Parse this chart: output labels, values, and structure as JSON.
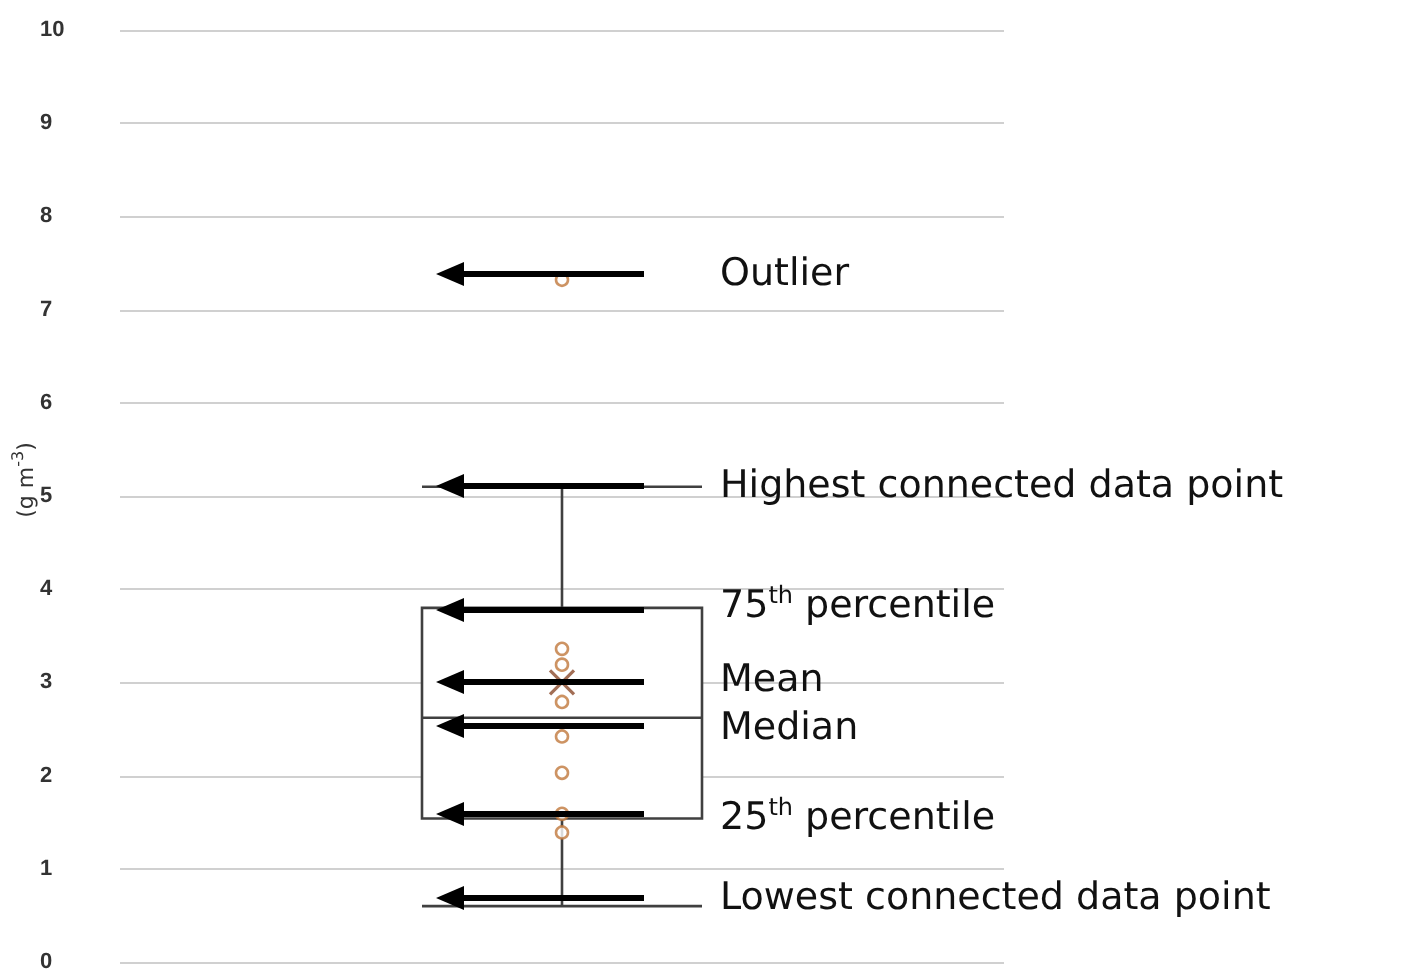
{
  "chart_data": {
    "type": "box",
    "categories": [
      null
    ],
    "ylabel": "(g m$^{-3}$)",
    "ylim": [
      0,
      10
    ],
    "yticks": [
      0,
      1,
      2,
      3,
      4,
      5,
      6,
      7,
      8,
      9,
      10
    ],
    "grid": "y",
    "marker": "circle",
    "series": [
      {
        "type": "box",
        "color": "#404040",
        "boxes": [
          {
            "low": 0.6,
            "q1": 1.54,
            "median": 2.62,
            "q3": 3.8,
            "high": 5.1,
            "mean": 3.0,
            "outliers": [
              7.32
            ]
          }
        ]
      },
      {
        "type": "scatter",
        "color": "#c0783c",
        "x": [
          null,
          null,
          null,
          null,
          null,
          null,
          null
        ],
        "values": [
          3.36,
          3.19,
          2.79,
          2.42,
          2.03,
          1.59,
          1.39
        ]
      }
    ],
    "annotations": [
      "Outlier",
      "Highest connected data point",
      "75$^{th}$ percentile",
      "Mean",
      "Median",
      "25$^{th}$ percentile",
      "Lowest connected data point"
    ]
  }
}
